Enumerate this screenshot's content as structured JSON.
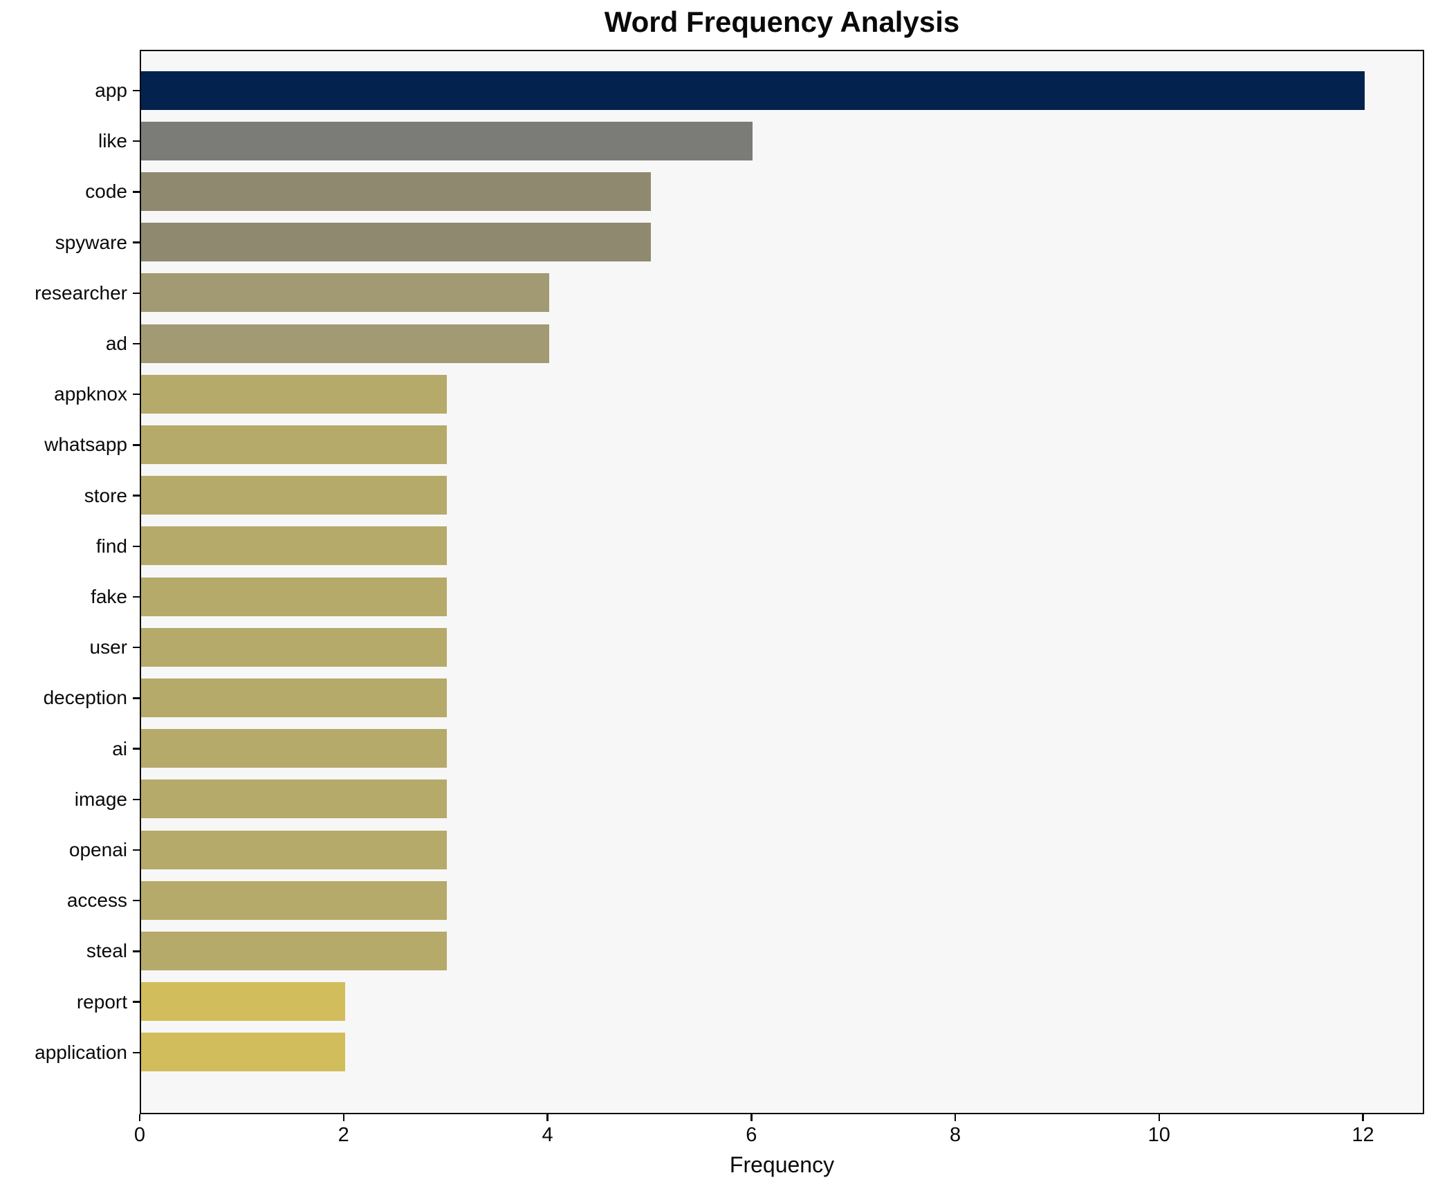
{
  "chart_data": {
    "type": "bar",
    "orientation": "horizontal",
    "title": "Word Frequency Analysis",
    "xlabel": "Frequency",
    "ylabel": "",
    "categories": [
      "app",
      "like",
      "code",
      "spyware",
      "researcher",
      "ad",
      "appknox",
      "whatsapp",
      "store",
      "find",
      "fake",
      "user",
      "deception",
      "ai",
      "image",
      "openai",
      "access",
      "steal",
      "report",
      "application"
    ],
    "values": [
      12,
      6,
      5,
      5,
      4,
      4,
      3,
      3,
      3,
      3,
      3,
      3,
      3,
      3,
      3,
      3,
      3,
      3,
      2,
      2
    ],
    "bar_colors": [
      "#03224e",
      "#7b7b78",
      "#8f8970",
      "#8f8970",
      "#a29a72",
      "#a29a72",
      "#b5aa6a",
      "#b5aa6a",
      "#b5aa6a",
      "#b5aa6a",
      "#b5aa6a",
      "#b5aa6a",
      "#b5aa6a",
      "#b5aa6a",
      "#b5aa6a",
      "#b5aa6a",
      "#b5aa6a",
      "#b5aa6a",
      "#d2bd5c",
      "#d2bd5c"
    ],
    "xlim": [
      0,
      12.6
    ],
    "xticks": [
      0,
      2,
      4,
      6,
      8,
      10,
      12
    ],
    "grid": false,
    "legend": "none",
    "plot_bg_color": "#f7f7f7",
    "figure_bg_color": "#ffffff",
    "spine_color": "#0a0a0a"
  }
}
